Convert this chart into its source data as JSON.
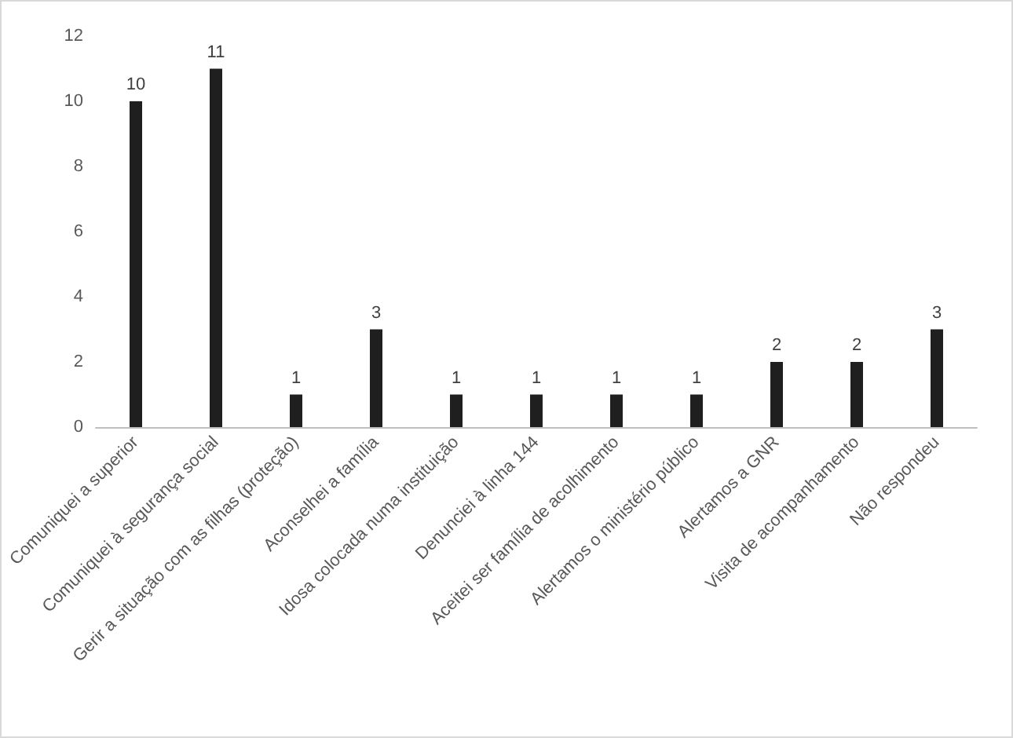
{
  "chart_data": {
    "type": "bar",
    "categories": [
      "Comuniquei a superior",
      "Comuniquei à segurança social",
      "Gerir a situação com as filhas (proteção)",
      "Aconselhei a família",
      "Idosa colocada numa instituição",
      "Denunciei à linha 144",
      "Aceitei ser família de acolhimento",
      "Alertamos o ministério público",
      "Alertamos a GNR",
      "Visita de acompanhamento",
      "Não respondeu"
    ],
    "values": [
      10,
      11,
      1,
      3,
      1,
      1,
      1,
      1,
      2,
      2,
      3
    ],
    "color": "#1f1f1f",
    "ylim": [
      0,
      12
    ],
    "yticks": [
      0,
      2,
      4,
      6,
      8,
      10,
      12
    ],
    "data_labels": true
  }
}
